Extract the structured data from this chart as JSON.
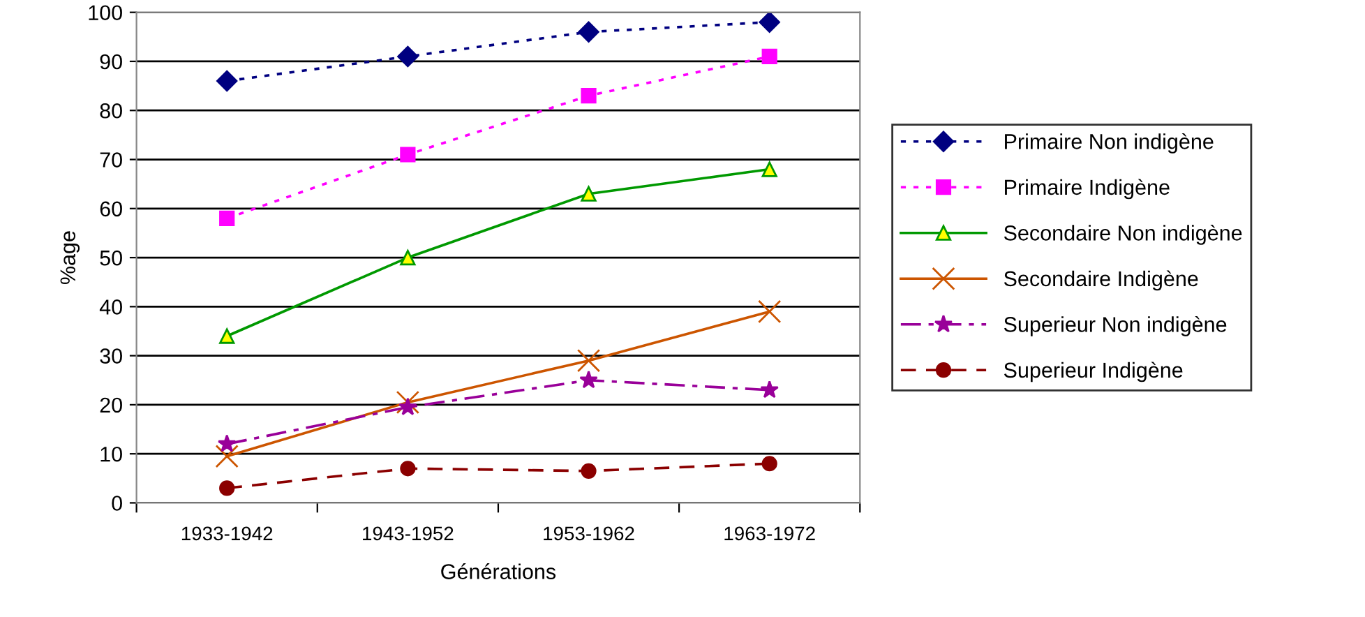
{
  "chart_data": {
    "type": "line",
    "xlabel": "Générations",
    "ylabel": "%age",
    "categories": [
      "1933-1942",
      "1943-1952",
      "1953-1962",
      "1963-1972"
    ],
    "series": [
      {
        "name": "Primaire Non indigène",
        "color": "#000080",
        "marker": "diamond",
        "line_style": "dotted",
        "values": [
          86,
          91,
          96,
          98
        ]
      },
      {
        "name": "Primaire Indigène",
        "color": "#ff00ff",
        "marker": "square",
        "line_style": "dotted",
        "values": [
          58,
          71,
          83,
          91
        ]
      },
      {
        "name": "Secondaire Non indigène",
        "color": "#009900",
        "marker": "triangle",
        "line_style": "solid",
        "values": [
          34,
          50,
          63,
          68
        ]
      },
      {
        "name": "Secondaire Indigène",
        "color": "#cc5500",
        "marker": "cross",
        "line_style": "solid",
        "values": [
          9.5,
          20.5,
          29,
          39
        ]
      },
      {
        "name": "Superieur Non indigène",
        "color": "#990099",
        "marker": "star",
        "line_style": "dashdot",
        "values": [
          12,
          19.5,
          25,
          23
        ]
      },
      {
        "name": "Superieur Indigène",
        "color": "#8b0000",
        "marker": "circle",
        "line_style": "dashed",
        "values": [
          3,
          7,
          6.5,
          8
        ]
      }
    ],
    "ylim": [
      0,
      100
    ],
    "yticks": [
      0,
      10,
      20,
      30,
      40,
      50,
      60,
      70,
      80,
      90,
      100
    ],
    "grid": "y",
    "legend": "right"
  }
}
